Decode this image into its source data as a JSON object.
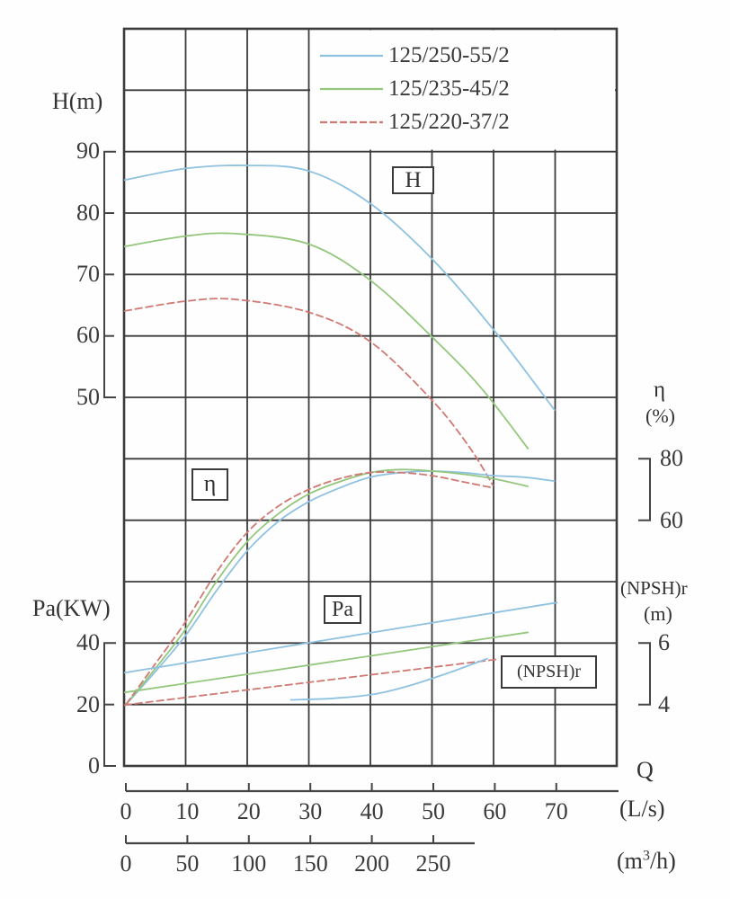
{
  "colors": {
    "blue": "#8fc2e0",
    "green": "#94c77d",
    "red": "#d07872",
    "grid": "#3b3b3b",
    "axis": "#444444",
    "text": "#3a3a3a"
  },
  "legend": {
    "entries": [
      {
        "label": "125/250-55/2",
        "color": "blue",
        "dashed": false
      },
      {
        "label": "125/235-45/2",
        "color": "green",
        "dashed": false
      },
      {
        "label": "125/220-37/2",
        "color": "red",
        "dashed": true
      }
    ]
  },
  "boxes": {
    "h": "H",
    "eta": "η",
    "pa": "Pa",
    "npsh": "(NPSH)r"
  },
  "axes": {
    "h": {
      "label": "H(m)",
      "ticks": [
        90,
        80,
        70,
        60,
        50
      ]
    },
    "pa": {
      "label": "Pa(KW)",
      "ticks": [
        40,
        20,
        0
      ]
    },
    "eta": {
      "label": "η",
      "unit": "(%)",
      "ticks": [
        80,
        60
      ]
    },
    "npsh": {
      "label": "(NPSH)r",
      "unit": "(m)",
      "ticks": [
        6,
        4
      ]
    },
    "q_ls": {
      "label": "Q",
      "unit": "(L/s)",
      "ticks": [
        0,
        10,
        20,
        30,
        40,
        50,
        60,
        70
      ]
    },
    "q_m3h": {
      "unit_pre": "(m",
      "unit_sup": "3",
      "unit_post": "/h)",
      "ticks": [
        0,
        50,
        100,
        150,
        200,
        250
      ]
    }
  },
  "chart_data": {
    "type": "line",
    "xlabel": "Q",
    "x_units": [
      "L/s",
      "m3/h"
    ],
    "x_range_Ls": [
      0,
      80
    ],
    "grid": true,
    "legend_position": "top-right",
    "y_axes": {
      "H": {
        "label": "H(m)",
        "labeled_range": [
          50,
          90
        ]
      },
      "ETA": {
        "label": "eta (%)",
        "labeled_range": [
          60,
          80
        ]
      },
      "PA": {
        "label": "Pa (KW)",
        "labeled_range": [
          0,
          40
        ]
      },
      "NPSH": {
        "label": "(NPSH)r (m)",
        "labeled_range": [
          4,
          6
        ]
      }
    },
    "series": [
      {
        "name": "125/250-55/2 H",
        "quantity": "H",
        "color": "blue",
        "dashed": false,
        "y_scale": "H",
        "points": [
          [
            0,
            85.3
          ],
          [
            10,
            87.2
          ],
          [
            20,
            87.7
          ],
          [
            30,
            86.8
          ],
          [
            40,
            81.5
          ],
          [
            50,
            72.5
          ],
          [
            60,
            61.0
          ],
          [
            70,
            47.8
          ]
        ]
      },
      {
        "name": "125/235-45/2 H",
        "quantity": "H",
        "color": "green",
        "dashed": false,
        "y_scale": "H",
        "points": [
          [
            0,
            74.5
          ],
          [
            10,
            76.2
          ],
          [
            18,
            76.6
          ],
          [
            30,
            74.9
          ],
          [
            40,
            69.0
          ],
          [
            50,
            59.8
          ],
          [
            58,
            51.5
          ],
          [
            65.7,
            41.5
          ]
        ]
      },
      {
        "name": "125/220-37/2 H",
        "quantity": "H",
        "color": "red",
        "dashed": true,
        "y_scale": "H",
        "points": [
          [
            0,
            64.0
          ],
          [
            10,
            65.6
          ],
          [
            18,
            65.9
          ],
          [
            30,
            63.8
          ],
          [
            40,
            59.0
          ],
          [
            50,
            49.5
          ],
          [
            56,
            42.0
          ],
          [
            60,
            35.5
          ]
        ]
      },
      {
        "name": "125/250-55/2 eta",
        "quantity": "eta",
        "color": "blue",
        "dashed": false,
        "y_scale": "ETA",
        "points": [
          [
            0.3,
            0
          ],
          [
            5,
            10.5
          ],
          [
            10,
            22.5
          ],
          [
            15,
            37
          ],
          [
            20,
            50
          ],
          [
            25,
            59.5
          ],
          [
            30,
            66
          ],
          [
            35,
            70.5
          ],
          [
            40,
            74
          ],
          [
            45,
            75.5
          ],
          [
            50,
            76
          ],
          [
            55,
            75.5
          ],
          [
            60,
            74.5
          ],
          [
            65,
            74
          ],
          [
            70,
            72.7
          ]
        ]
      },
      {
        "name": "125/235-45/2 eta",
        "quantity": "eta",
        "color": "green",
        "dashed": false,
        "y_scale": "ETA",
        "points": [
          [
            0.3,
            0
          ],
          [
            5,
            11.5
          ],
          [
            10,
            24.5
          ],
          [
            15,
            40
          ],
          [
            20,
            53
          ],
          [
            25,
            62
          ],
          [
            30,
            68.5
          ],
          [
            35,
            72.5
          ],
          [
            40,
            75.5
          ],
          [
            45,
            76.5
          ],
          [
            50,
            76
          ],
          [
            55,
            75
          ],
          [
            60,
            73.5
          ],
          [
            65.7,
            71
          ]
        ]
      },
      {
        "name": "125/220-37/2 eta",
        "quantity": "eta",
        "color": "red",
        "dashed": true,
        "y_scale": "ETA",
        "points": [
          [
            0.3,
            0
          ],
          [
            5,
            13
          ],
          [
            10,
            27
          ],
          [
            15,
            43
          ],
          [
            20,
            56
          ],
          [
            25,
            64.5
          ],
          [
            30,
            70
          ],
          [
            35,
            73.5
          ],
          [
            40,
            75.5
          ],
          [
            45,
            75.5
          ],
          [
            50,
            74.5
          ],
          [
            55,
            72.5
          ],
          [
            60,
            70.5
          ]
        ]
      },
      {
        "name": "125/250-55/2 Pa",
        "quantity": "Pa",
        "color": "blue",
        "dashed": false,
        "y_scale": "PA",
        "points": [
          [
            0,
            30.3
          ],
          [
            35,
            41.7
          ],
          [
            70.4,
            53.2
          ]
        ]
      },
      {
        "name": "125/235-45/2 Pa",
        "quantity": "Pa",
        "color": "green",
        "dashed": false,
        "y_scale": "PA",
        "points": [
          [
            0,
            23.9
          ],
          [
            33,
            33.7
          ],
          [
            65.7,
            43.5
          ]
        ]
      },
      {
        "name": "125/220-37/2 Pa",
        "quantity": "Pa",
        "color": "red",
        "dashed": true,
        "y_scale": "PA",
        "points": [
          [
            0,
            19.8
          ],
          [
            30,
            27.2
          ],
          [
            60.6,
            34.7
          ]
        ]
      },
      {
        "name": "125/250-55/2 NPSHr",
        "quantity": "NPSHr",
        "color": "blue",
        "dashed": false,
        "y_scale": "NPSH",
        "points": [
          [
            27,
            4.15
          ],
          [
            34,
            4.2
          ],
          [
            41,
            4.35
          ],
          [
            47,
            4.65
          ],
          [
            53,
            5.05
          ],
          [
            59.1,
            5.5
          ]
        ]
      }
    ]
  }
}
